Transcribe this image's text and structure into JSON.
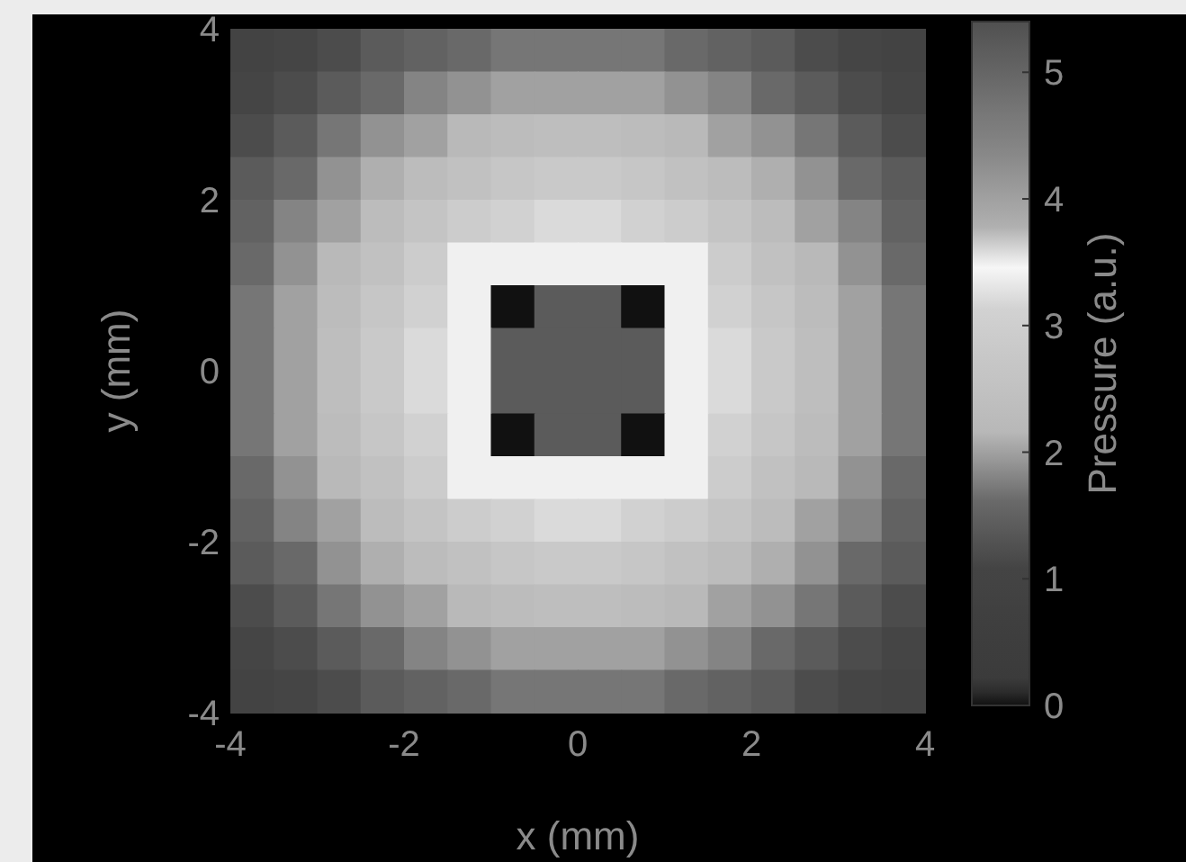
{
  "chart_data": {
    "type": "heatmap",
    "xlabel": "x (mm)",
    "ylabel": "y (mm)",
    "clabel": "Pressure (a.u.)",
    "xlim": [
      -4,
      4
    ],
    "xticks": [
      -4,
      -2,
      0,
      2,
      4
    ],
    "ylim": [
      -4,
      4
    ],
    "yticks": [
      -4,
      -2,
      0,
      2,
      4
    ],
    "clim": [
      0,
      5.4
    ],
    "cticks": [
      0,
      1,
      2,
      3,
      4,
      5
    ],
    "cells": [
      [
        1.0,
        1.1,
        1.2,
        1.4,
        1.5,
        1.6,
        1.7,
        1.7,
        1.7,
        1.7,
        1.6,
        1.5,
        1.4,
        1.2,
        1.1,
        1.0
      ],
      [
        1.1,
        1.2,
        1.4,
        1.6,
        1.8,
        1.9,
        2.0,
        2.0,
        2.0,
        2.0,
        1.9,
        1.8,
        1.6,
        1.4,
        1.2,
        1.1
      ],
      [
        1.2,
        1.4,
        1.7,
        1.9,
        2.0,
        2.2,
        2.3,
        2.4,
        2.4,
        2.3,
        2.2,
        2.0,
        1.9,
        1.7,
        1.4,
        1.2
      ],
      [
        1.4,
        1.6,
        1.9,
        2.1,
        2.3,
        2.5,
        2.7,
        2.8,
        2.8,
        2.7,
        2.5,
        2.3,
        2.1,
        1.9,
        1.6,
        1.4
      ],
      [
        1.5,
        1.8,
        2.0,
        2.3,
        2.6,
        2.9,
        3.1,
        3.2,
        3.2,
        3.1,
        2.9,
        2.6,
        2.3,
        2.0,
        1.8,
        1.5
      ],
      [
        1.6,
        1.9,
        2.2,
        2.5,
        2.9,
        3.4,
        3.4,
        3.4,
        3.4,
        3.4,
        3.4,
        2.9,
        2.5,
        2.2,
        1.9,
        1.6
      ],
      [
        1.7,
        2.0,
        2.3,
        2.7,
        3.1,
        3.4,
        0,
        5.2,
        5.2,
        0,
        3.4,
        3.1,
        2.7,
        2.3,
        2.0,
        1.7
      ],
      [
        1.7,
        2.0,
        2.4,
        2.8,
        3.2,
        3.4,
        5.2,
        5.2,
        5.2,
        5.2,
        3.4,
        3.2,
        2.8,
        2.4,
        2.0,
        1.7
      ],
      [
        1.7,
        2.0,
        2.4,
        2.8,
        3.2,
        3.4,
        5.2,
        5.2,
        5.2,
        5.2,
        3.4,
        3.2,
        2.8,
        2.4,
        2.0,
        1.7
      ],
      [
        1.7,
        2.0,
        2.3,
        2.7,
        3.1,
        3.4,
        0,
        5.2,
        5.2,
        0,
        3.4,
        3.1,
        2.7,
        2.3,
        2.0,
        1.7
      ],
      [
        1.6,
        1.9,
        2.2,
        2.5,
        2.9,
        3.4,
        3.4,
        3.4,
        3.4,
        3.4,
        3.4,
        2.9,
        2.5,
        2.2,
        1.9,
        1.6
      ],
      [
        1.5,
        1.8,
        2.0,
        2.3,
        2.6,
        2.9,
        3.1,
        3.2,
        3.2,
        3.1,
        2.9,
        2.6,
        2.3,
        2.0,
        1.8,
        1.5
      ],
      [
        1.4,
        1.6,
        1.9,
        2.1,
        2.3,
        2.5,
        2.7,
        2.8,
        2.8,
        2.7,
        2.5,
        2.3,
        2.1,
        1.9,
        1.6,
        1.4
      ],
      [
        1.2,
        1.4,
        1.7,
        1.9,
        2.0,
        2.2,
        2.3,
        2.4,
        2.4,
        2.3,
        2.2,
        2.0,
        1.9,
        1.7,
        1.4,
        1.2
      ],
      [
        1.1,
        1.2,
        1.4,
        1.6,
        1.8,
        1.9,
        2.0,
        2.0,
        2.0,
        2.0,
        1.9,
        1.8,
        1.6,
        1.4,
        1.2,
        1.1
      ],
      [
        1.0,
        1.1,
        1.2,
        1.4,
        1.5,
        1.6,
        1.7,
        1.7,
        1.7,
        1.7,
        1.6,
        1.5,
        1.4,
        1.2,
        1.1,
        1.0
      ]
    ]
  }
}
